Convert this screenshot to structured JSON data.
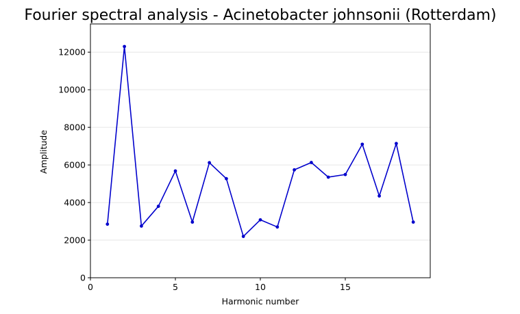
{
  "chart_data": {
    "type": "line",
    "title": "Fourier spectral analysis - Acinetobacter johnsonii (Rotterdam)",
    "xlabel": "Harmonic number",
    "ylabel": "Amplitude",
    "xlim": [
      0,
      20
    ],
    "ylim": [
      0,
      13500
    ],
    "xticks": [
      0,
      5,
      10,
      15
    ],
    "yticks": [
      0,
      2000,
      4000,
      6000,
      8000,
      10000,
      12000
    ],
    "grid": "horizontal",
    "line_color": "#0000cc",
    "series": [
      {
        "x": [
          1,
          2,
          3,
          4,
          5,
          6,
          7,
          8,
          9,
          10,
          11,
          12,
          13,
          14,
          15,
          16,
          17,
          18,
          19
        ],
        "values": [
          2850,
          12300,
          2750,
          3800,
          5680,
          2960,
          6120,
          5270,
          2200,
          3080,
          2700,
          5740,
          6130,
          5350,
          5490,
          7100,
          4350,
          7140,
          2960
        ]
      }
    ]
  }
}
